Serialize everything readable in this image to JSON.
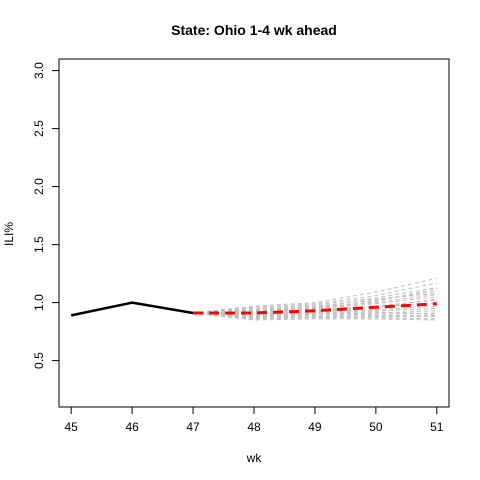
{
  "chart_data": {
    "type": "line",
    "title": "State: Ohio 1-4 wk ahead",
    "xlabel": "wk",
    "ylabel": "ILI%",
    "xlim": [
      44.8,
      51.2
    ],
    "ylim": [
      0.1,
      3.1
    ],
    "x_ticks": [
      "45",
      "46",
      "47",
      "48",
      "49",
      "50",
      "51"
    ],
    "y_ticks": [
      "0.5",
      "1.0",
      "1.5",
      "2.0",
      "2.5",
      "3.0"
    ],
    "grid": false,
    "legend": "none",
    "colors": {
      "observed": "#000000",
      "forecast_mean": "#ff0000",
      "forecast_samples": "#bebebe"
    },
    "series": [
      {
        "x": [
          45,
          46,
          47
        ],
        "values": [
          0.89,
          1.0,
          0.91
        ],
        "style": "solid"
      },
      {
        "x": [
          47,
          48,
          49,
          50,
          51
        ],
        "values": [
          0.91,
          0.91,
          0.93,
          0.96,
          0.99
        ],
        "style": "dashed"
      }
    ],
    "sample_trajectories": {
      "x": [
        47,
        48,
        49,
        50,
        51
      ],
      "values": [
        [
          0.91,
          0.97,
          1.0,
          1.09,
          1.21
        ],
        [
          0.91,
          0.96,
          0.99,
          1.06,
          1.17
        ],
        [
          0.91,
          0.95,
          0.98,
          1.04,
          1.13
        ],
        [
          0.91,
          0.94,
          0.97,
          1.02,
          1.1
        ],
        [
          0.91,
          0.93,
          0.96,
          1.0,
          1.07
        ],
        [
          0.91,
          0.93,
          0.95,
          0.99,
          1.05
        ],
        [
          0.91,
          0.92,
          0.94,
          0.97,
          1.02
        ],
        [
          0.91,
          0.91,
          0.93,
          0.96,
          1.0
        ],
        [
          0.91,
          0.9,
          0.92,
          0.94,
          0.97
        ],
        [
          0.91,
          0.89,
          0.91,
          0.93,
          0.95
        ],
        [
          0.91,
          0.88,
          0.9,
          0.91,
          0.93
        ],
        [
          0.91,
          0.88,
          0.89,
          0.9,
          0.91
        ],
        [
          0.91,
          0.87,
          0.88,
          0.89,
          0.89
        ],
        [
          0.91,
          0.86,
          0.87,
          0.88,
          0.88
        ],
        [
          0.91,
          0.86,
          0.87,
          0.87,
          0.86
        ],
        [
          0.91,
          0.85,
          0.86,
          0.86,
          0.85
        ],
        [
          0.91,
          0.94,
          0.95,
          1.01,
          1.12
        ],
        [
          0.91,
          0.92,
          0.96,
          1.03,
          1.08
        ],
        [
          0.91,
          0.89,
          0.92,
          0.96,
          1.03
        ],
        [
          0.91,
          0.87,
          0.9,
          0.92,
          0.9
        ]
      ]
    }
  }
}
